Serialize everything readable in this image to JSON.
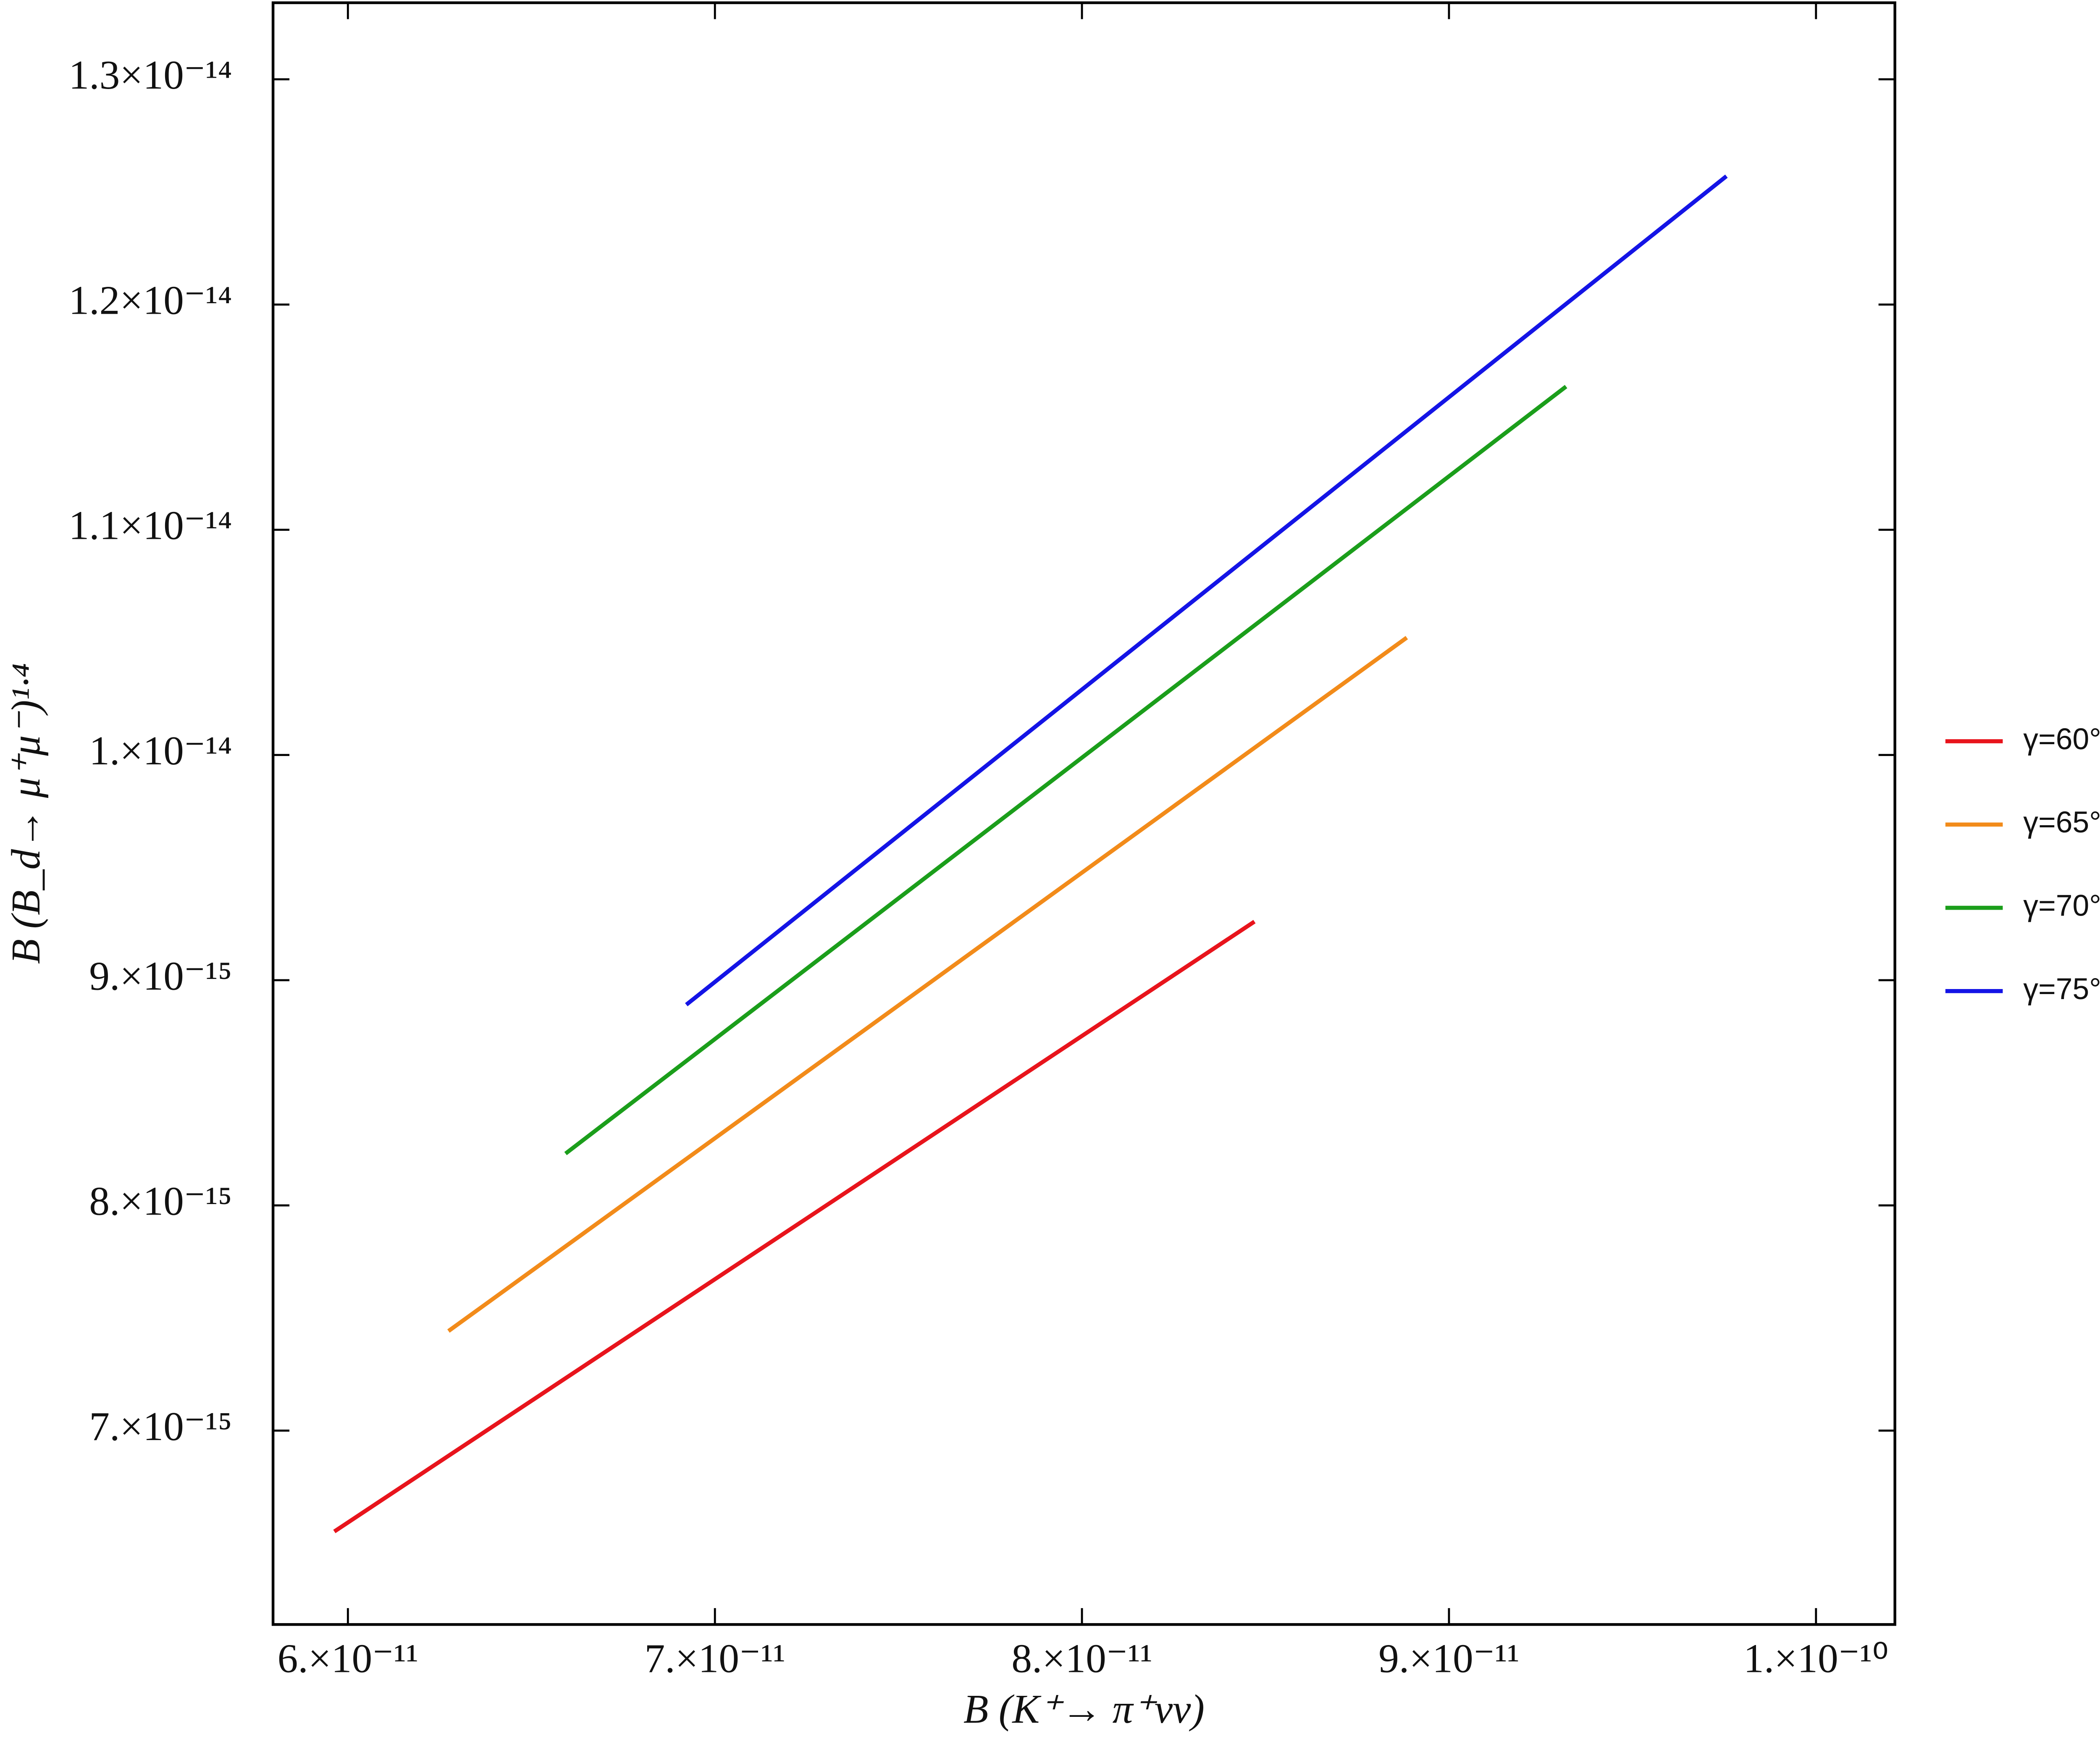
{
  "chart_data": {
    "type": "line",
    "x_label": "B (K⁺→ π⁺νν)",
    "y_label": "B (B_d→ μ⁺μ⁻)¹·⁴",
    "xlim": [
      5.796e-11,
      1.0215e-10
    ],
    "ylim": [
      6.139e-15,
      1.334e-14
    ],
    "xticks": [
      {
        "value": 6e-11,
        "label": "6.×10⁻¹¹"
      },
      {
        "value": 7e-11,
        "label": "7.×10⁻¹¹"
      },
      {
        "value": 8e-11,
        "label": "8.×10⁻¹¹"
      },
      {
        "value": 9e-11,
        "label": "9.×10⁻¹¹"
      },
      {
        "value": 1e-10,
        "label": "1.×10⁻¹⁰"
      }
    ],
    "yticks": [
      {
        "value": 7e-15,
        "label": "7.×10⁻¹⁵"
      },
      {
        "value": 8e-15,
        "label": "8.×10⁻¹⁵"
      },
      {
        "value": 9e-15,
        "label": "9.×10⁻¹⁵"
      },
      {
        "value": 1e-14,
        "label": "1.×10⁻¹⁴"
      },
      {
        "value": 1.1e-14,
        "label": "1.1×10⁻¹⁴"
      },
      {
        "value": 1.2e-14,
        "label": "1.2×10⁻¹⁴"
      },
      {
        "value": 1.3e-14,
        "label": "1.3×10⁻¹⁴"
      }
    ],
    "legend": "right",
    "series": [
      {
        "name": "γ=60°",
        "color": "#e8141c",
        "x": [
          5.963e-11,
          8.47e-11
        ],
        "values": [
          6.552e-15,
          9.26e-15
        ]
      },
      {
        "name": "γ=65°",
        "color": "#f28b1a",
        "x": [
          6.274e-11,
          8.885e-11
        ],
        "values": [
          7.442e-15,
          1.0521e-14
        ]
      },
      {
        "name": "γ=70°",
        "color": "#1b9e1b",
        "x": [
          6.593e-11,
          9.319e-11
        ],
        "values": [
          8.23e-15,
          1.1636e-14
        ]
      },
      {
        "name": "γ=75°",
        "color": "#1414e6",
        "x": [
          6.922e-11,
          9.756e-11
        ],
        "values": [
          8.891e-15,
          1.257e-14
        ]
      }
    ]
  }
}
